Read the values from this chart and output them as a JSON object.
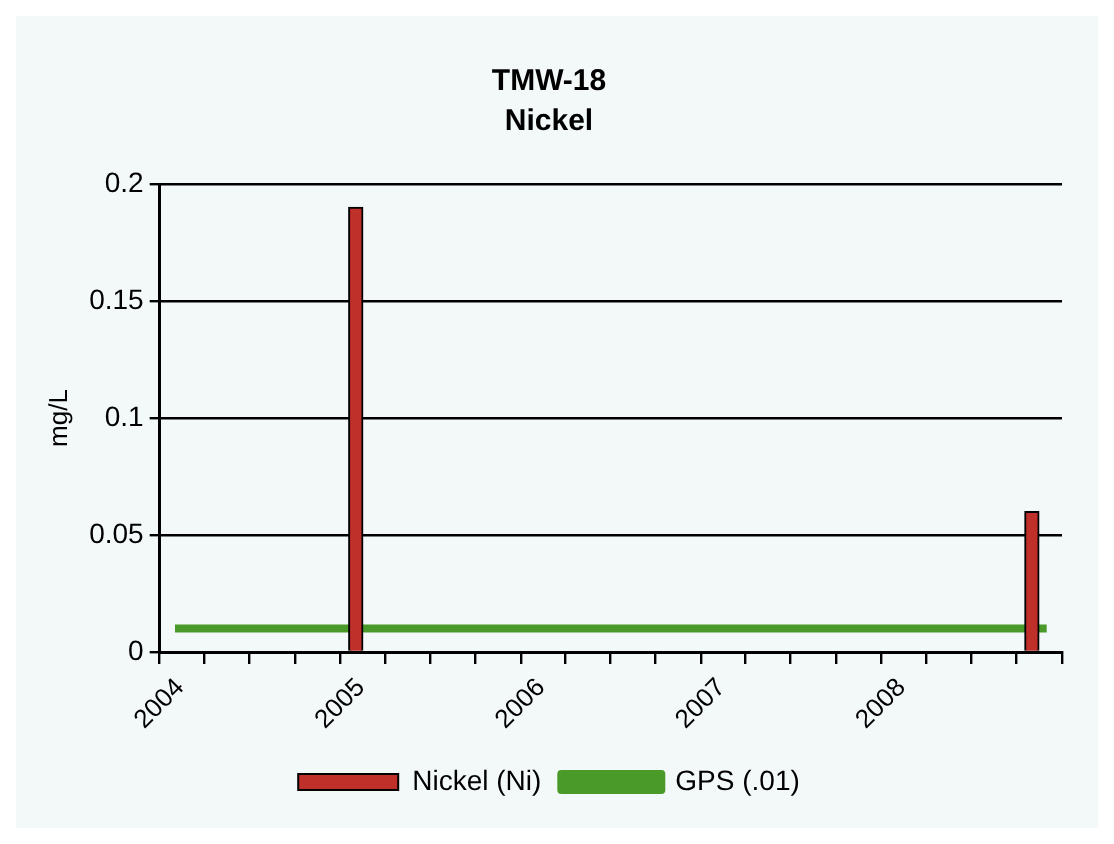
{
  "chart_data": {
    "type": "bar",
    "title": "TMW-18",
    "subtitle": "Nickel",
    "ylabel": "mg/L",
    "series": [
      {
        "name": "Nickel (Ni)",
        "color": "#c0302a",
        "x": [
          "2005-02",
          "2008-11"
        ],
        "values": [
          0.19,
          0.06
        ]
      },
      {
        "name": "GPS (.01)",
        "type": "line",
        "color": "#4a9a2a",
        "x": [
          "2004-02",
          "2008-12"
        ],
        "values": [
          0.01,
          0.01
        ]
      }
    ],
    "xlim": [
      "2004",
      "2009"
    ],
    "xticks": [
      "2004",
      {
        "value": "2004-04",
        "label": null
      },
      {
        "value": "2004-07",
        "label": null
      },
      {
        "value": "2004-10",
        "label": null
      },
      "2005",
      {
        "value": "2005-04",
        "label": null
      },
      {
        "value": "2005-07",
        "label": null
      },
      {
        "value": "2005-10",
        "label": null
      },
      "2006",
      {
        "value": "2006-04",
        "label": null
      },
      {
        "value": "2006-07",
        "label": null
      },
      {
        "value": "2006-10",
        "label": null
      },
      "2007",
      {
        "value": "2007-04",
        "label": null
      },
      {
        "value": "2007-07",
        "label": null
      },
      {
        "value": "2007-10",
        "label": null
      },
      "2008",
      {
        "value": "2008-04",
        "label": null
      },
      {
        "value": "2008-07",
        "label": null
      },
      {
        "value": "2008-10",
        "label": null
      },
      {
        "value": "2009",
        "label": null
      }
    ],
    "ylim": [
      0,
      0.2
    ],
    "yticks": [
      0,
      0.05,
      0.1,
      0.15,
      0.2
    ],
    "grid": "y",
    "legend": "bottom",
    "marker": "none",
    "line_style": "solid"
  }
}
